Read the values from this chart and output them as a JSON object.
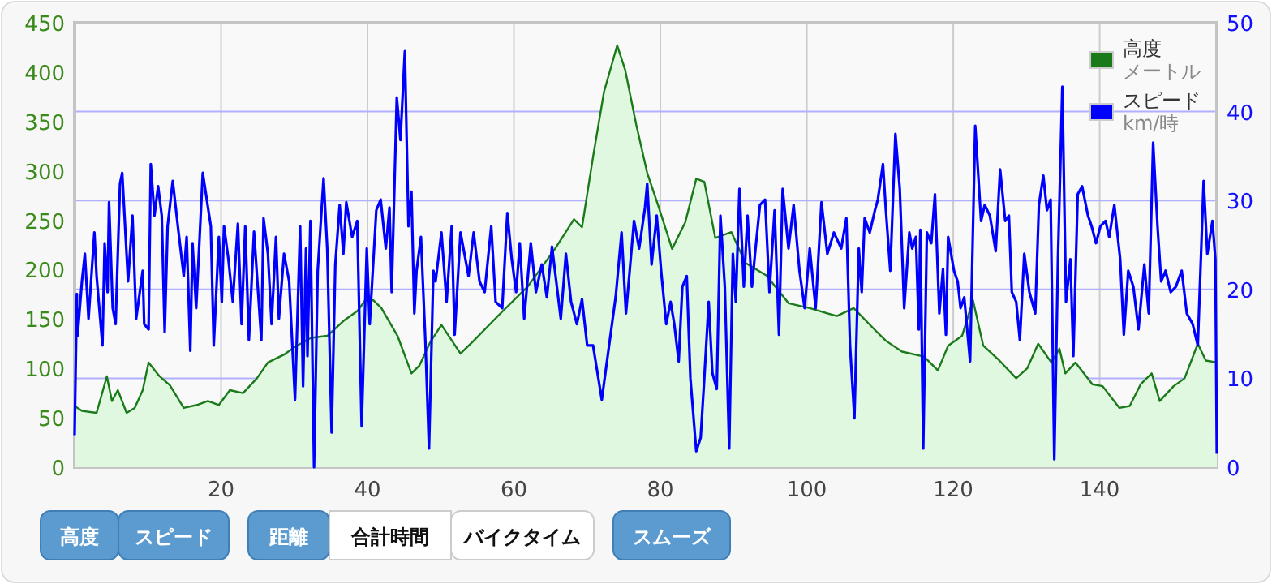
{
  "chart_data": {
    "type": "area",
    "xlim": [
      0,
      156
    ],
    "xticks": [
      20,
      40,
      60,
      80,
      100,
      120,
      140
    ],
    "ylim": [
      0,
      450
    ],
    "yticks": [
      0,
      50,
      100,
      150,
      200,
      250,
      300,
      350,
      400,
      450
    ],
    "y2lim": [
      0,
      50
    ],
    "y2ticks": [
      0,
      10,
      20,
      30,
      40,
      50
    ],
    "grid": true,
    "legend": "top right",
    "marker": "none",
    "annotations": [
      "高度",
      "スピード",
      "距離",
      "合計時間",
      "バイクタイム",
      "スムーズ",
      "メートル",
      "km/時"
    ],
    "series": [
      {
        "name": "高度",
        "color": "#1a7a1a",
        "x": [
          0,
          1,
          3,
          4.4,
          5.1,
          5.9,
          7.1,
          8.2,
          9.3,
          10.1,
          11.6,
          13,
          14.9,
          16.7,
          18.2,
          19.7,
          21.2,
          23,
          24.9,
          26.4,
          28.6,
          30.1,
          32.3,
          34.5,
          36.7,
          38.6,
          39.7,
          40.8,
          41.9,
          44.1,
          46,
          47.1,
          48.6,
          50.1,
          52.7,
          54.5,
          58.2,
          61.9,
          65.6,
          68.2,
          69.3,
          70.8,
          72.3,
          74.1,
          75.2,
          76.7,
          78.2,
          79.7,
          81.6,
          83.4,
          84.9,
          86,
          87.5,
          89.7,
          91.6,
          94.5,
          97.5,
          100.4,
          104.1,
          106.4,
          109.3,
          110.8,
          113,
          116,
          117.9,
          119.3,
          121.2,
          122.7,
          124.1,
          126.3,
          128.6,
          130.1,
          131.6,
          133.4,
          134.5,
          135.3,
          136.7,
          139,
          140.4,
          142.7,
          144.1,
          145.6,
          147.1,
          148.2,
          150.1,
          151.6,
          153.4,
          154.5,
          156
        ],
        "values": [
          62,
          57,
          55,
          92,
          67,
          78,
          55,
          60,
          78,
          106,
          92,
          83,
          60,
          63,
          67,
          63,
          78,
          75,
          90,
          106,
          114,
          122,
          131,
          133,
          148,
          158,
          169,
          169,
          161,
          133,
          95,
          103,
          127,
          144,
          115,
          128,
          156,
          183,
          221,
          251,
          243,
          314,
          380,
          427,
          402,
          347,
          298,
          265,
          221,
          248,
          292,
          289,
          232,
          238,
          207,
          194,
          166,
          161,
          153,
          161,
          139,
          128,
          117,
          112,
          98,
          123,
          133,
          169,
          123,
          108,
          90,
          100,
          125,
          106,
          120,
          95,
          106,
          84,
          82,
          60,
          62,
          84,
          95,
          67,
          82,
          90,
          125,
          108,
          106
        ]
      },
      {
        "name": "スピード",
        "type": "line",
        "axis": "y2",
        "color": "#0000ff",
        "x": [
          0,
          0.3,
          0.4,
          1.0,
          1.4,
          1.9,
          2.7,
          3.0,
          3.8,
          4.1,
          4.5,
          4.7,
          5.2,
          5.6,
          6.2,
          6.5,
          7.3,
          7.9,
          8.4,
          9.3,
          9.5,
          10.1,
          10.4,
          10.9,
          11.4,
          11.9,
          12.3,
          12.7,
          13.4,
          14.1,
          14.9,
          15.3,
          15.8,
          16.1,
          16.6,
          17.5,
          18.6,
          19.0,
          19.7,
          20.1,
          20.4,
          21.0,
          21.6,
          22.3,
          22.8,
          23.3,
          23.8,
          24.5,
          25.5,
          25.8,
          26.4,
          26.9,
          27.5,
          27.9,
          28.6,
          29.3,
          30.1,
          30.8,
          31.2,
          31.6,
          31.8,
          32.2,
          32.7,
          33.2,
          34.0,
          34.5,
          35.1,
          35.6,
          36.2,
          36.7,
          37.1,
          37.9,
          38.6,
          39.2,
          39.9,
          40.3,
          41.2,
          41.8,
          42.5,
          43.0,
          43.3,
          44.0,
          44.5,
          45.1,
          45.6,
          46.0,
          46.4,
          46.7,
          47.3,
          47.9,
          48.4,
          49.0,
          49.3,
          50.1,
          50.8,
          51.5,
          51.9,
          52.7,
          53.8,
          54.5,
          55.3,
          56.0,
          56.9,
          57.5,
          58.4,
          59.1,
          59.7,
          60.3,
          60.8,
          61.4,
          62.3,
          63.0,
          63.8,
          64.5,
          65.2,
          66.4,
          67.1,
          67.8,
          68.6,
          69.3,
          70.0,
          70.8,
          72.0,
          73.9,
          74.7,
          75.3,
          76.4,
          77.1,
          77.9,
          78.2,
          78.8,
          79.5,
          80.1,
          80.8,
          81.4,
          81.9,
          82.5,
          83.0,
          83.6,
          84.1,
          84.9,
          85.5,
          86.0,
          86.6,
          87.1,
          87.7,
          88.2,
          88.8,
          89.4,
          89.9,
          90.3,
          90.8,
          91.4,
          91.9,
          92.5,
          93.0,
          93.6,
          94.3,
          94.9,
          95.6,
          96.2,
          96.7,
          97.5,
          98.2,
          99.0,
          99.7,
          100.4,
          101.2,
          102.0,
          102.8,
          103.7,
          104.7,
          105.4,
          105.9,
          106.5,
          107.1,
          107.5,
          107.9,
          108.6,
          109.3,
          109.7,
          110.4,
          110.8,
          111.4,
          112.1,
          112.7,
          113.3,
          114.0,
          114.4,
          114.9,
          115.3,
          115.5,
          115.9,
          116.4,
          117.0,
          117.5,
          118.1,
          118.6,
          119.0,
          119.3,
          120.1,
          120.6,
          121.0,
          121.5,
          122.3,
          123.0,
          123.8,
          124.3,
          125.0,
          125.8,
          126.4,
          127.1,
          127.6,
          128.0,
          128.6,
          129.1,
          129.7,
          130.4,
          131.2,
          131.7,
          132.3,
          132.8,
          133.3,
          133.8,
          134.3,
          134.9,
          135.4,
          136.0,
          136.4,
          137.0,
          137.6,
          138.4,
          138.9,
          139.5,
          140.1,
          140.8,
          141.3,
          142.0,
          142.8,
          143.3,
          143.9,
          144.6,
          145.3,
          146.1,
          146.7,
          147.3,
          147.9,
          148.4,
          149.0,
          149.7,
          150.4,
          151.2,
          151.9,
          152.7,
          153.4,
          154.2,
          154.7,
          155.4,
          155.8,
          156
        ],
        "values": [
          3.6,
          19.5,
          14.8,
          20.9,
          24,
          16.7,
          26.4,
          21.5,
          13.7,
          25.2,
          19.7,
          29.8,
          17.9,
          16.1,
          31.9,
          33.1,
          20.9,
          28.3,
          16.7,
          22.1,
          16.1,
          15.5,
          34.1,
          28.3,
          31.6,
          28.3,
          15.2,
          27.1,
          32.2,
          27.1,
          21.5,
          25.9,
          13.1,
          25.2,
          17.9,
          33.1,
          27.1,
          13.7,
          25.9,
          18.6,
          27.1,
          23.4,
          18.6,
          27.4,
          16.1,
          27.1,
          14.3,
          26.5,
          14.3,
          28,
          24,
          16.1,
          25.9,
          16.7,
          24,
          20.9,
          7.6,
          27.1,
          9.1,
          24.6,
          12.5,
          27.7,
          0,
          22.1,
          32.5,
          24.6,
          3.9,
          22.8,
          29.5,
          24,
          29.8,
          25.9,
          27.7,
          4.6,
          24.6,
          16.1,
          28.9,
          30.1,
          24.6,
          29.2,
          19.7,
          41.6,
          36.8,
          46.8,
          27.1,
          31,
          17.3,
          22.1,
          25.9,
          14.3,
          2.1,
          22.1,
          20.9,
          26.4,
          18.6,
          27.1,
          14.9,
          26.4,
          21.5,
          26.4,
          20.9,
          19.7,
          27.1,
          18.6,
          17.9,
          28.6,
          23.4,
          19.7,
          25.2,
          16.7,
          25.2,
          19.7,
          22.8,
          19.1,
          24.8,
          16.7,
          24,
          18.6,
          16.1,
          18.9,
          13.7,
          13.7,
          7.6,
          19.2,
          26.4,
          17.3,
          27.7,
          24.6,
          29.2,
          31.9,
          22.8,
          28.3,
          22.1,
          16.1,
          18.6,
          16.1,
          11.9,
          20.3,
          21.5,
          10,
          1.8,
          3.3,
          10,
          18.6,
          10.6,
          8.8,
          28.3,
          20.3,
          2.1,
          24,
          18.6,
          31.3,
          20.3,
          28.3,
          20.3,
          24.6,
          29.5,
          30.1,
          19.7,
          28.9,
          14.9,
          31.3,
          24.6,
          29.5,
          22.1,
          17.9,
          24.6,
          17.9,
          29.8,
          24,
          26.4,
          24.6,
          28,
          13.7,
          5.5,
          24.6,
          19.7,
          28,
          26.4,
          28.9,
          30.1,
          34.1,
          28.9,
          22.1,
          37.5,
          31.3,
          17.9,
          26.4,
          24.6,
          25.9,
          15.5,
          26.7,
          2.1,
          26.4,
          25.2,
          30.7,
          17.3,
          22.3,
          14.9,
          25.9,
          22.1,
          20.9,
          17.9,
          19.1,
          11.9,
          38.4,
          27.7,
          29.5,
          28.3,
          24.3,
          33.5,
          27.7,
          28.3,
          19.7,
          18.6,
          14.3,
          24,
          19.7,
          17.3,
          29.5,
          32.8,
          28.9,
          30.1,
          0.9,
          23.4,
          42.8,
          18.6,
          23.4,
          12.5,
          30.7,
          31.6,
          28.3,
          27.1,
          25.2,
          27.1,
          27.7,
          25.9,
          29.5,
          23.4,
          14.9,
          22.1,
          20.3,
          15.5,
          22.8,
          17.3,
          36.5,
          27.1,
          20.9,
          22.1,
          19.7,
          20.3,
          22.1,
          17.3,
          16.1,
          13.7,
          32.2,
          24,
          27.7,
          23.4,
          1.5
        ]
      }
    ]
  }
}
